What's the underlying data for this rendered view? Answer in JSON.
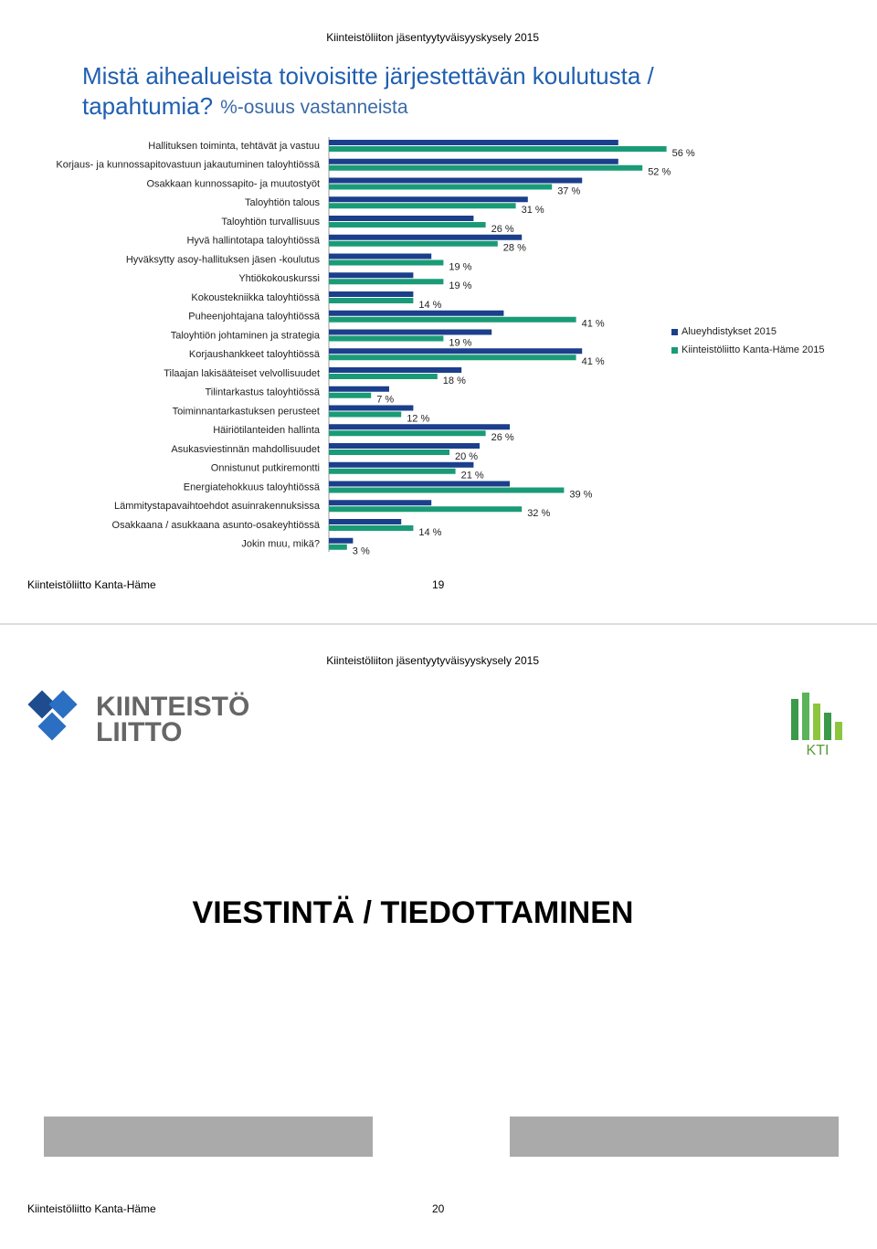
{
  "page1": {
    "header": "Kiinteistöliiton jäsentyytyväisyyskysely 2015",
    "title_line1": "Mistä aihealueista toivoisitte järjestettävän koulutusta /",
    "title_line2": "tapahtumia?",
    "subtitle": "%-osuus vastanneista",
    "footer": "Kiinteistöliitto Kanta-Häme",
    "page_number": "19"
  },
  "chart_data": {
    "type": "hbar",
    "categories": [
      "Hallituksen toiminta, tehtävät ja vastuu",
      "Korjaus- ja kunnossapitovastuun jakautuminen taloyhtiössä",
      "Osakkaan kunnossapito- ja muutostyöt",
      "Taloyhtiön talous",
      "Taloyhtiön turvallisuus",
      "Hyvä hallintotapa taloyhtiössä",
      "Hyväksytty asoy-hallituksen jäsen -koulutus",
      "Yhtiökokouskurssi",
      "Kokoustekniikka taloyhtiössä",
      "Puheenjohtajana taloyhtiössä",
      "Taloyhtiön johtaminen ja strategia",
      "Korjaushankkeet taloyhtiössä",
      "Tilaajan lakisääteiset velvollisuudet",
      "Tilintarkastus taloyhtiössä",
      "Toiminnantarkastuksen perusteet",
      "Häiriötilanteiden hallinta",
      "Asukasviestinnän mahdollisuudet",
      "Onnistunut putkiremontti",
      "Energiatehokkuus taloyhtiössä",
      "Lämmitystapavaihtoehdot asuinrakennuksissa",
      "Osakkaana / asukkaana asunto-osakeyhtiössä",
      "Jokin muu, mikä?"
    ],
    "series": [
      {
        "name": "Alueyhdistykset 2015",
        "color": "#1b3f8b",
        "values": [
          48,
          48,
          42,
          33,
          24,
          32,
          17,
          14,
          14,
          29,
          27,
          42,
          22,
          10,
          14,
          30,
          25,
          24,
          30,
          17,
          12,
          4
        ]
      },
      {
        "name": "Kiinteistöliitto Kanta-Häme 2015",
        "color": "#1a9b77",
        "values": [
          56,
          52,
          37,
          31,
          26,
          28,
          19,
          19,
          14,
          41,
          19,
          41,
          18,
          7,
          12,
          26,
          20,
          21,
          39,
          32,
          14,
          3
        ],
        "value_labels": [
          "56 %",
          "52 %",
          "37 %",
          "31 %",
          "26 %",
          "28 %",
          "19 %",
          "19 %",
          "14 %",
          "41 %",
          "19 %",
          "41 %",
          "18 %",
          "7 %",
          "12 %",
          "26 %",
          "20 %",
          "21 %",
          "39 %",
          "32 %",
          "14 %",
          "3 %"
        ]
      }
    ],
    "xlim": [
      0,
      60
    ],
    "legend": "right"
  },
  "page2": {
    "header": "Kiinteistöliiton jäsentyytyväisyyskysely 2015",
    "logo_left_line1": "KIINTEISTÖ",
    "logo_left_line2": "LIITTO",
    "logo_right": "KTI",
    "heading": "VIESTINTÄ / TIEDOTTAMINEN",
    "footer": "Kiinteistöliitto Kanta-Häme",
    "page_number": "20"
  }
}
